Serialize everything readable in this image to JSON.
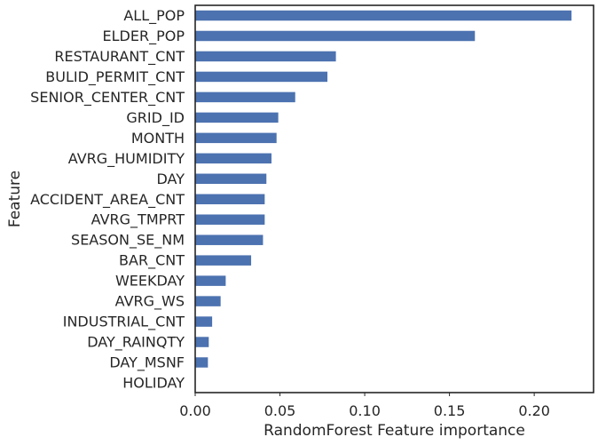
{
  "chart_data": {
    "type": "bar",
    "orientation": "horizontal",
    "title": "",
    "xlabel": "RandomForest Feature importance",
    "ylabel": "Feature",
    "xlim": [
      0,
      0.235
    ],
    "xticks": [
      0.0,
      0.05,
      0.1,
      0.15,
      0.2
    ],
    "xtick_labels": [
      "0.00",
      "0.05",
      "0.10",
      "0.15",
      "0.20"
    ],
    "grid": false,
    "legend": "none",
    "bar_color": "#4c72b0",
    "categories": [
      "ALL_POP",
      "ELDER_POP",
      "RESTAURANT_CNT",
      "BULID_PERMIT_CNT",
      "SENIOR_CENTER_CNT",
      "GRID_ID",
      "MONTH",
      "AVRG_HUMIDITY",
      "DAY",
      "ACCIDENT_AREA_CNT",
      "AVRG_TMPRT",
      "SEASON_SE_NM",
      "BAR_CNT",
      "WEEKDAY",
      "AVRG_WS",
      "INDUSTRIAL_CNT",
      "DAY_RAINQTY",
      "DAY_MSNF",
      "HOLIDAY"
    ],
    "values": [
      0.222,
      0.165,
      0.083,
      0.078,
      0.059,
      0.049,
      0.048,
      0.045,
      0.042,
      0.041,
      0.041,
      0.04,
      0.033,
      0.018,
      0.015,
      0.01,
      0.008,
      0.0075,
      0.0
    ]
  }
}
